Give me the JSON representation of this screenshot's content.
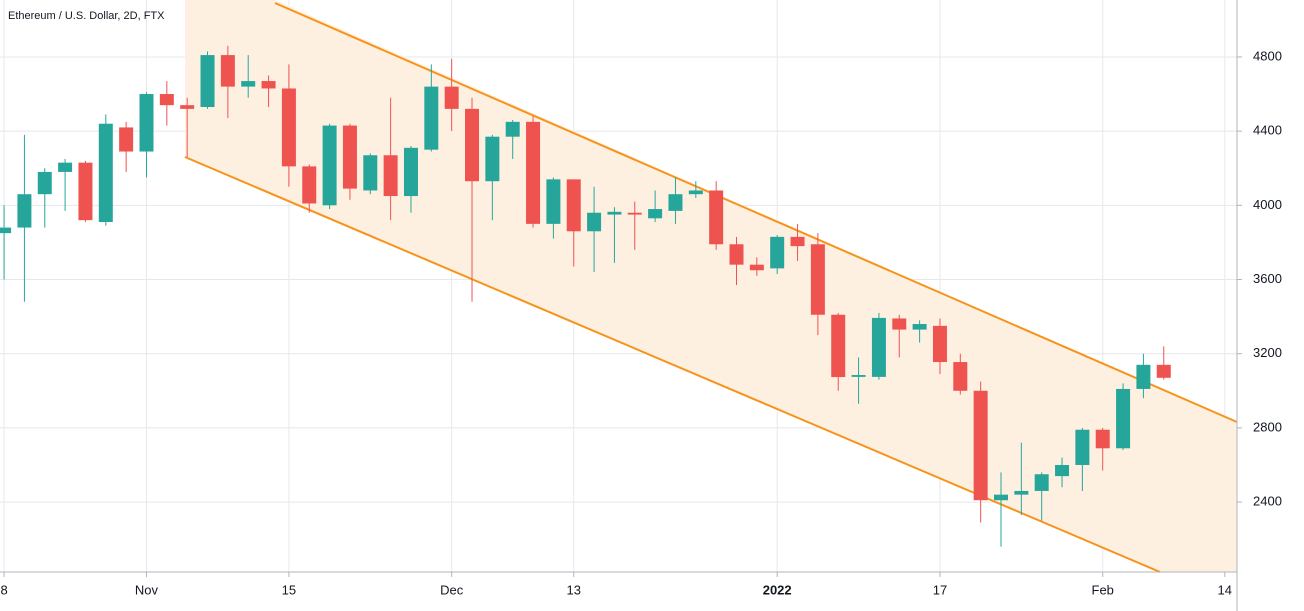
{
  "chart_data": {
    "type": "candlestick",
    "title": "Ethereum / U.S. Dollar, 2D, FTX",
    "open": [
      3850,
      3880,
      4060,
      4180,
      4230,
      3910,
      4420,
      4290,
      4600,
      4540,
      4530,
      4810,
      4640,
      4670,
      4630,
      4210,
      4000,
      4430,
      4080,
      4270,
      4050,
      4300,
      4640,
      4520,
      4130,
      4370,
      4450,
      3900,
      4140,
      3860,
      3950,
      3960,
      3930,
      3970,
      4060,
      4080,
      3790,
      3680,
      3660,
      3830,
      3790,
      3410,
      3075,
      3075,
      3390,
      3330,
      3350,
      3155,
      3000,
      2410,
      2440,
      2460,
      2540,
      2600,
      2790,
      2690,
      3010,
      3140
    ],
    "high": [
      4000,
      4380,
      4200,
      4250,
      4240,
      4490,
      4450,
      4610,
      4670,
      4580,
      4830,
      4860,
      4810,
      4700,
      4760,
      4220,
      4440,
      4440,
      4280,
      4580,
      4320,
      4760,
      4790,
      4580,
      4380,
      4460,
      4480,
      4150,
      4140,
      4100,
      3990,
      4020,
      4080,
      4150,
      4130,
      4130,
      3830,
      3720,
      3840,
      3900,
      3850,
      3420,
      3180,
      3420,
      3410,
      3380,
      3390,
      3200,
      3050,
      2560,
      2720,
      2560,
      2640,
      2800,
      2800,
      3040,
      3200,
      3240
    ],
    "low": [
      3600,
      3480,
      3880,
      3970,
      3910,
      3890,
      4180,
      4150,
      4430,
      4260,
      4520,
      4470,
      4580,
      4530,
      4100,
      3960,
      3980,
      4030,
      4060,
      3920,
      3960,
      4290,
      4400,
      3480,
      3920,
      4250,
      3880,
      3820,
      3670,
      3640,
      3690,
      3760,
      3910,
      3900,
      4040,
      3760,
      3570,
      3620,
      3630,
      3700,
      3300,
      3000,
      2930,
      3060,
      3180,
      3260,
      3090,
      2980,
      2290,
      2160,
      2330,
      2300,
      2480,
      2460,
      2570,
      2680,
      2960,
      3060
    ],
    "close": [
      3880,
      4060,
      4180,
      4230,
      3920,
      4440,
      4290,
      4600,
      4540,
      4520,
      4810,
      4640,
      4670,
      4630,
      4210,
      4010,
      4430,
      4090,
      4270,
      4050,
      4310,
      4640,
      4520,
      4130,
      4370,
      4450,
      3900,
      4140,
      3860,
      3960,
      3965,
      3950,
      3980,
      4060,
      4080,
      3790,
      3680,
      3650,
      3830,
      3780,
      3410,
      3074,
      3085,
      3393,
      3330,
      3360,
      3155,
      3000,
      2410,
      2440,
      2460,
      2550,
      2600,
      2790,
      2690,
      3010,
      3140,
      3070
    ],
    "up_color": "#26a69a",
    "down_color": "#ef5350",
    "xlim": [
      -0.2,
      60.6
    ],
    "xticks": [
      {
        "value": 0,
        "label": "8"
      },
      {
        "value": 7,
        "label": "Nov"
      },
      {
        "value": 14,
        "label": "15"
      },
      {
        "value": 22,
        "label": "Dec"
      },
      {
        "value": 28,
        "label": "13"
      },
      {
        "value": 38,
        "label": "2022",
        "bold": true
      },
      {
        "value": 46,
        "label": "17"
      },
      {
        "value": 54,
        "label": "Feb"
      },
      {
        "value": 60,
        "label": "14"
      }
    ],
    "ylim": [
      2023,
      5107
    ],
    "yticks": [
      2400,
      2800,
      3200,
      3600,
      4000,
      4400,
      4800
    ],
    "grid": true
  }
}
